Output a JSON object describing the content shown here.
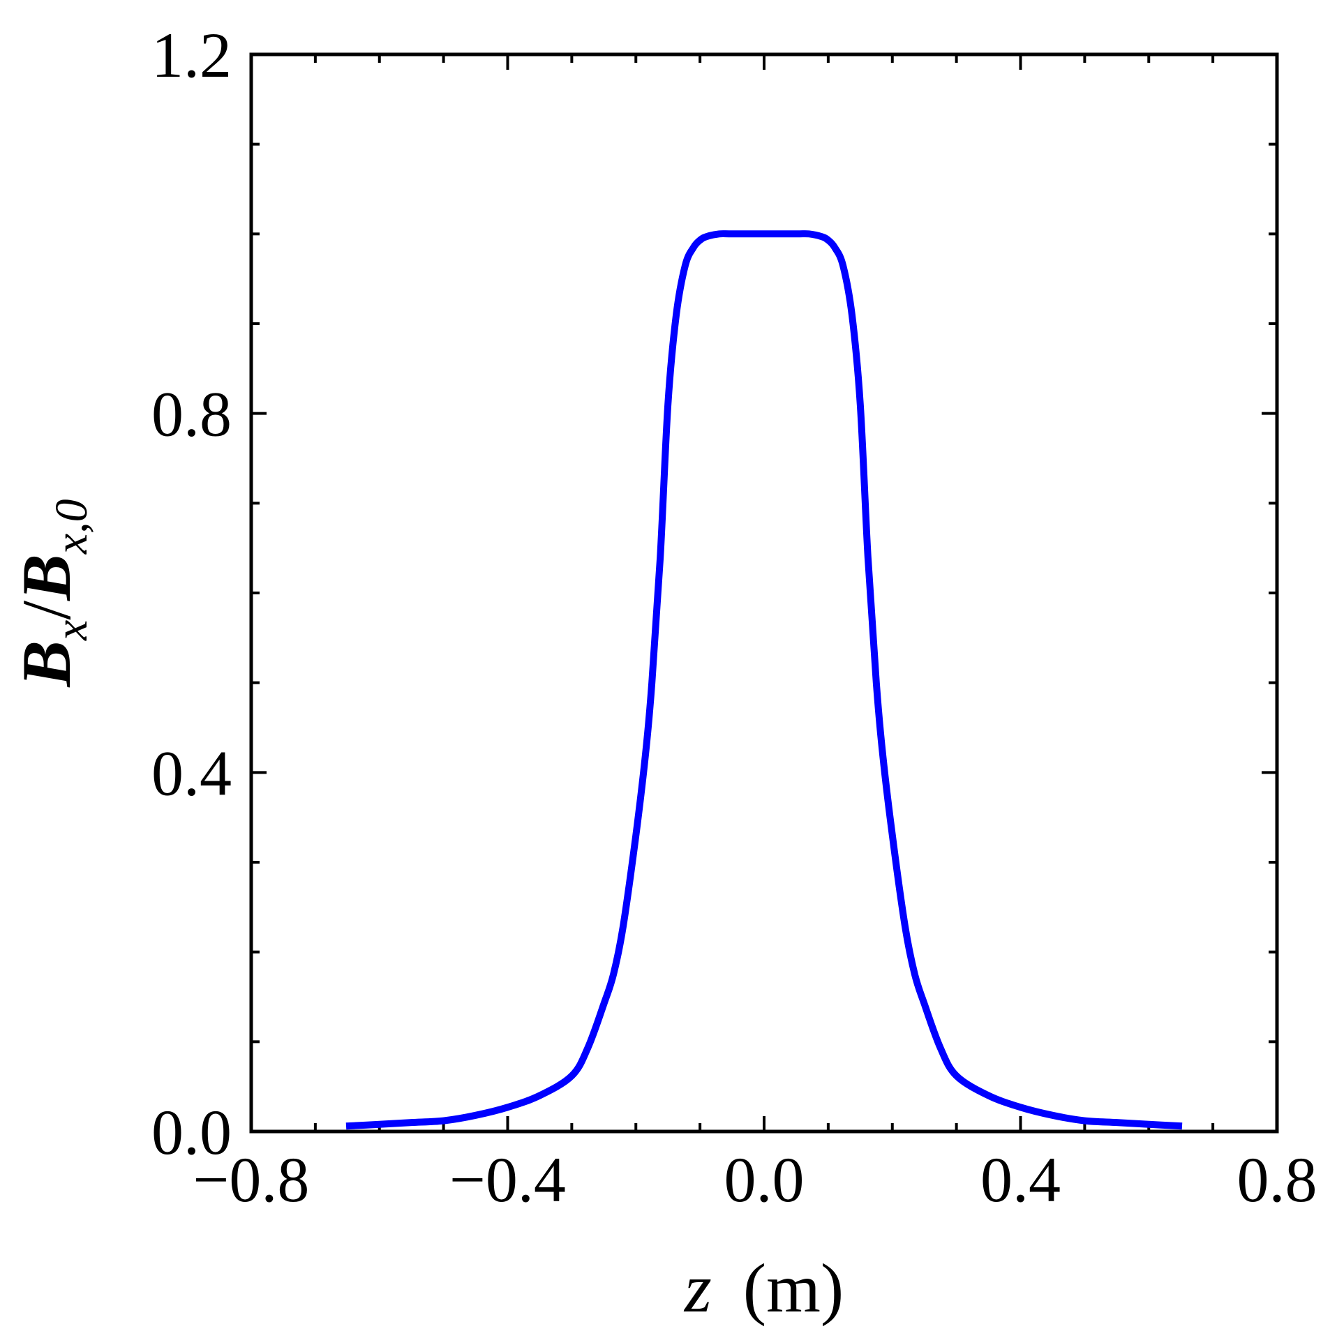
{
  "chart_data": {
    "type": "line",
    "title": "",
    "xlabel": "z (m)",
    "ylabel": "B_x/B_{x,0}",
    "xlabel_parts": {
      "var": "z",
      "unit": "(m)"
    },
    "ylabel_parts": {
      "num": "B",
      "num_sub": "x",
      "sep": "/",
      "den": "B",
      "den_sub": "x,0"
    },
    "xlim": [
      -0.8,
      0.8
    ],
    "ylim": [
      0.0,
      1.2
    ],
    "xticks": [
      -0.8,
      -0.4,
      0.0,
      0.4,
      0.8
    ],
    "xtick_labels": [
      "−0.8",
      "−0.4",
      "0.0",
      "0.4",
      "0.8"
    ],
    "yticks": [
      0.0,
      0.4,
      0.8,
      1.2
    ],
    "ytick_labels": [
      "0.0",
      "0.4",
      "0.8",
      "1.2"
    ],
    "x_minor_step": 0.1,
    "y_minor_step": 0.1,
    "grid": false,
    "legend": null,
    "series": [
      {
        "name": "Bx/Bx0",
        "color": "#0000ff",
        "x": [
          -0.652,
          -0.6,
          -0.55,
          -0.5,
          -0.45,
          -0.4,
          -0.35,
          -0.3,
          -0.275,
          -0.25,
          -0.235,
          -0.22,
          -0.2,
          -0.185,
          -0.175,
          -0.162,
          -0.15,
          -0.137,
          -0.123,
          -0.11,
          -0.1,
          -0.09,
          -0.07,
          -0.05,
          0.0,
          0.05,
          0.07,
          0.09,
          0.1,
          0.11,
          0.123,
          0.137,
          0.15,
          0.162,
          0.175,
          0.185,
          0.2,
          0.22,
          0.235,
          0.25,
          0.275,
          0.3,
          0.35,
          0.4,
          0.45,
          0.5,
          0.55,
          0.6,
          0.652
        ],
        "values": [
          0.006,
          0.008,
          0.01,
          0.012,
          0.018,
          0.027,
          0.04,
          0.062,
          0.093,
          0.142,
          0.175,
          0.228,
          0.33,
          0.42,
          0.5,
          0.64,
          0.81,
          0.91,
          0.965,
          0.985,
          0.993,
          0.997,
          1.0,
          1.0,
          1.0,
          1.0,
          1.0,
          0.997,
          0.993,
          0.985,
          0.965,
          0.91,
          0.81,
          0.64,
          0.5,
          0.42,
          0.33,
          0.228,
          0.175,
          0.142,
          0.093,
          0.062,
          0.04,
          0.027,
          0.018,
          0.012,
          0.01,
          0.008,
          0.006
        ]
      }
    ]
  },
  "layout_colors": {
    "axis": "#000000",
    "line": "#0000ff",
    "background": "#ffffff"
  }
}
